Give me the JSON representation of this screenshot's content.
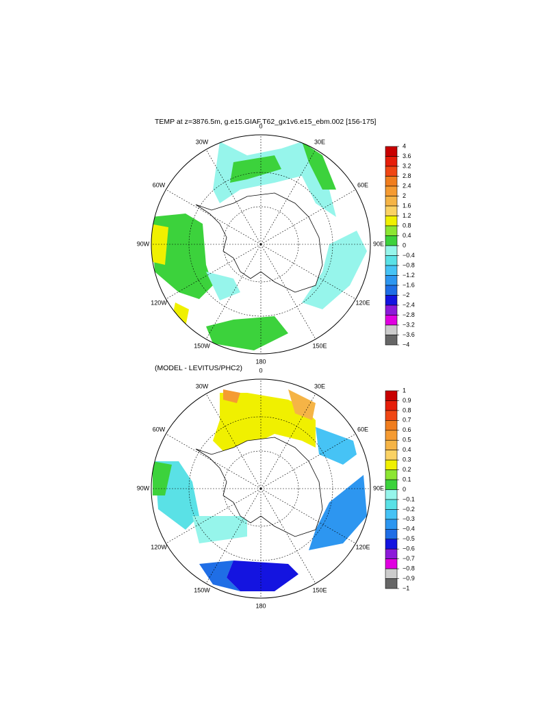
{
  "chart_data": [
    {
      "type": "polar-map",
      "title": "TEMP at z=3876.5m, g.e15.GIAF.T62_gx1v6.e15_ebm.002 [156-175]",
      "lon_labels": [
        "0",
        "30E",
        "60E",
        "90E",
        "120E",
        "150E",
        "180",
        "150W",
        "120W",
        "90W",
        "60W",
        "30W"
      ],
      "colorbar": {
        "ylim": [
          -4,
          4
        ],
        "yticks": [
          4,
          3.6,
          3.2,
          2.8,
          2.4,
          2,
          1.6,
          1.2,
          0.8,
          0.4,
          0,
          {
            "value": -0.4,
            "label": "−0.4"
          },
          {
            "value": -0.8,
            "label": "−0.8"
          },
          {
            "value": -1.2,
            "label": "−1.2"
          },
          {
            "value": -1.6,
            "label": "−1.6"
          },
          {
            "value": -2,
            "label": "−2"
          },
          {
            "value": -2.4,
            "label": "−2.4"
          },
          {
            "value": -2.8,
            "label": "−2.8"
          },
          {
            "value": -3.2,
            "label": "−3.2"
          },
          {
            "value": -3.6,
            "label": "−3.6"
          },
          {
            "value": -4,
            "label": "−4"
          }
        ],
        "colors": [
          "#c80000",
          "#e61e0a",
          "#f04614",
          "#f07d1e",
          "#f59b32",
          "#f5b446",
          "#fad264",
          "#f0f000",
          "#8ce632",
          "#3cd23c",
          "#96f5eb",
          "#5ae1e6",
          "#46c3f5",
          "#2d96f0",
          "#1f6ee6",
          "#1414e0",
          "#8c1ad9",
          "#e000e0",
          "#cccccc",
          "#666666"
        ]
      }
    },
    {
      "type": "polar-map",
      "title": "(MODEL - LEVITUS/PHC2)",
      "lon_labels": [
        "0",
        "30E",
        "60E",
        "90E",
        "120E",
        "150E",
        "180",
        "150W",
        "120W",
        "90W",
        "60W",
        "30W"
      ],
      "colorbar": {
        "ylim": [
          -1,
          1
        ],
        "yticks": [
          1,
          0.9,
          0.8,
          0.7,
          0.6,
          0.5,
          0.4,
          0.3,
          0.2,
          0.1,
          0,
          {
            "value": -0.1,
            "label": "−0.1"
          },
          {
            "value": -0.2,
            "label": "−0.2"
          },
          {
            "value": -0.3,
            "label": "−0.3"
          },
          {
            "value": -0.4,
            "label": "−0.4"
          },
          {
            "value": -0.5,
            "label": "−0.5"
          },
          {
            "value": -0.6,
            "label": "−0.6"
          },
          {
            "value": -0.7,
            "label": "−0.7"
          },
          {
            "value": -0.8,
            "label": "−0.8"
          },
          {
            "value": -0.9,
            "label": "−0.9"
          },
          {
            "value": -1,
            "label": "−1"
          }
        ],
        "colors": [
          "#c80000",
          "#e61e0a",
          "#f04614",
          "#f07d1e",
          "#f59b32",
          "#f5b446",
          "#fad264",
          "#f0f000",
          "#8ce632",
          "#3cd23c",
          "#96f5eb",
          "#5ae1e6",
          "#46c3f5",
          "#2d96f0",
          "#1f6ee6",
          "#1414e0",
          "#8c1ad9",
          "#e000e0",
          "#cccccc",
          "#666666"
        ]
      }
    }
  ]
}
